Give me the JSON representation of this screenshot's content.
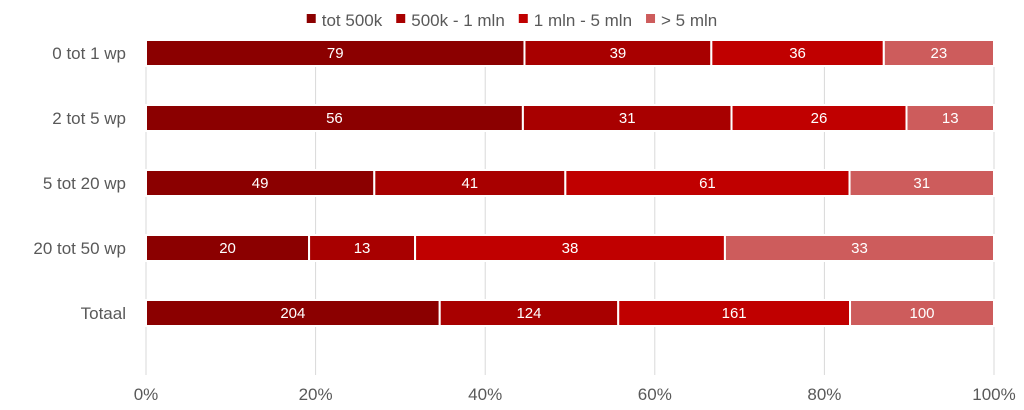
{
  "chart_data": {
    "type": "bar",
    "orientation": "horizontal",
    "stacked": "percent",
    "categories": [
      "0 tot 1 wp",
      "2 tot 5 wp",
      "5 tot 20 wp",
      "20 tot 50 wp",
      "Totaal"
    ],
    "series": [
      {
        "name": "tot 500k",
        "color": "#8b0000",
        "values": [
          79,
          56,
          49,
          20,
          204
        ]
      },
      {
        "name": "500k - 1 mln",
        "color": "#a80000",
        "values": [
          39,
          31,
          41,
          13,
          124
        ]
      },
      {
        "name": "1 mln - 5 mln",
        "color": "#c00000",
        "values": [
          36,
          26,
          61,
          38,
          161
        ]
      },
      {
        "name": "> 5 mln",
        "color": "#cd5c5c",
        "values": [
          23,
          13,
          31,
          33,
          100
        ]
      }
    ],
    "x_ticks": [
      "0%",
      "20%",
      "40%",
      "60%",
      "80%",
      "100%"
    ],
    "xlim": [
      0,
      100
    ],
    "legend": "top",
    "grid": "vertical"
  }
}
